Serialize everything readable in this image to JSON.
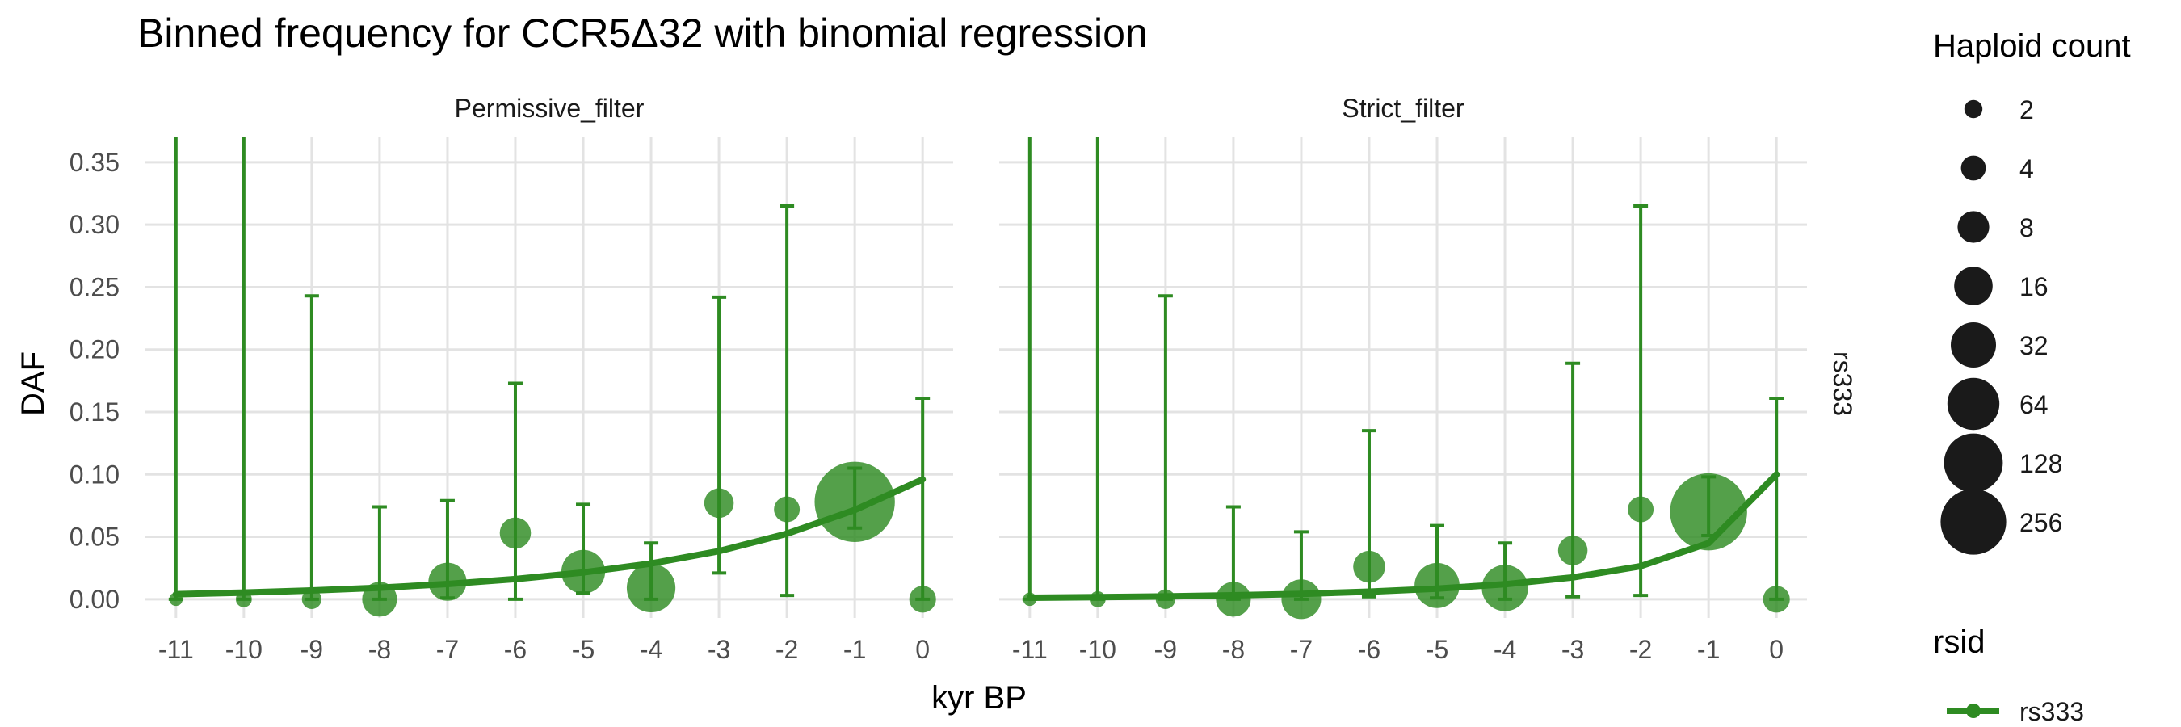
{
  "chart_data": {
    "type": "scatter",
    "title": "Binned frequency for CCR5Δ32 with binomial regression",
    "xlabel": "kyr BP",
    "ylabel": "DAF",
    "facet_row_label": "rs333",
    "x_ticks": [
      "-11",
      "-10",
      "-9",
      "-8",
      "-7",
      "-6",
      "-5",
      "-4",
      "-3",
      "-2",
      "-1",
      "0"
    ],
    "y_ticks": [
      "0.00",
      "0.05",
      "0.10",
      "0.15",
      "0.20",
      "0.25",
      "0.30",
      "0.35"
    ],
    "xlim": [
      -11.45,
      0.45
    ],
    "ylim": [
      -0.015,
      0.37
    ],
    "grid": true,
    "color": "#2e8b22",
    "legend": {
      "size_title": "Haploid count",
      "size_values": [
        "2",
        "4",
        "8",
        "16",
        "32",
        "64",
        "128",
        "256"
      ],
      "color_title": "rsid",
      "color_entries": [
        "rs333"
      ]
    },
    "panels": [
      {
        "name": "Permissive_filter",
        "points": [
          {
            "x": -11,
            "y": 0.0,
            "lo": 0.0,
            "hi": 0.37,
            "count": 2
          },
          {
            "x": -10,
            "y": 0.0,
            "lo": 0.0,
            "hi": 0.37,
            "count": 4
          },
          {
            "x": -9,
            "y": 0.0,
            "lo": 0.0,
            "hi": 0.243,
            "count": 8
          },
          {
            "x": -8,
            "y": 0.0,
            "lo": 0.0,
            "hi": 0.074,
            "count": 40
          },
          {
            "x": -7,
            "y": 0.014,
            "lo": 0.001,
            "hi": 0.079,
            "count": 50
          },
          {
            "x": -6,
            "y": 0.053,
            "lo": 0.0,
            "hi": 0.173,
            "count": 30
          },
          {
            "x": -5,
            "y": 0.022,
            "lo": 0.005,
            "hi": 0.076,
            "count": 70
          },
          {
            "x": -4,
            "y": 0.009,
            "lo": 0.0,
            "hi": 0.045,
            "count": 90
          },
          {
            "x": -3,
            "y": 0.077,
            "lo": 0.021,
            "hi": 0.242,
            "count": 26
          },
          {
            "x": -2,
            "y": 0.072,
            "lo": 0.003,
            "hi": 0.315,
            "count": 18
          },
          {
            "x": -1,
            "y": 0.078,
            "lo": 0.057,
            "hi": 0.105,
            "count": 280
          },
          {
            "x": 0,
            "y": 0.0,
            "lo": 0.0,
            "hi": 0.161,
            "count": 20
          }
        ],
        "fit": {
          "x": [
            -11,
            -10,
            -9,
            -8,
            -7,
            -6,
            -5,
            -4,
            -3,
            -2,
            -1,
            0
          ],
          "y": [
            0.004,
            0.0053,
            0.007,
            0.0092,
            0.0122,
            0.0161,
            0.0214,
            0.0286,
            0.0385,
            0.0525,
            0.0715,
            0.096
          ]
        }
      },
      {
        "name": "Strict_filter",
        "points": [
          {
            "x": -11,
            "y": 0.0,
            "lo": 0.0,
            "hi": 0.37,
            "count": 2
          },
          {
            "x": -10,
            "y": 0.0,
            "lo": 0.0,
            "hi": 0.37,
            "count": 4
          },
          {
            "x": -9,
            "y": 0.0,
            "lo": 0.0,
            "hi": 0.243,
            "count": 8
          },
          {
            "x": -8,
            "y": 0.0,
            "lo": 0.0,
            "hi": 0.074,
            "count": 40
          },
          {
            "x": -7,
            "y": 0.0,
            "lo": 0.0,
            "hi": 0.054,
            "count": 55
          },
          {
            "x": -6,
            "y": 0.026,
            "lo": 0.002,
            "hi": 0.135,
            "count": 32
          },
          {
            "x": -5,
            "y": 0.011,
            "lo": 0.001,
            "hi": 0.059,
            "count": 75
          },
          {
            "x": -4,
            "y": 0.009,
            "lo": 0.0,
            "hi": 0.045,
            "count": 80
          },
          {
            "x": -3,
            "y": 0.039,
            "lo": 0.002,
            "hi": 0.189,
            "count": 26
          },
          {
            "x": -2,
            "y": 0.072,
            "lo": 0.003,
            "hi": 0.315,
            "count": 18
          },
          {
            "x": -1,
            "y": 0.07,
            "lo": 0.051,
            "hi": 0.098,
            "count": 256
          },
          {
            "x": 0,
            "y": 0.0,
            "lo": 0.0,
            "hi": 0.161,
            "count": 20
          }
        ],
        "fit": {
          "x": [
            -11,
            -10,
            -9,
            -8,
            -7,
            -6,
            -5,
            -4,
            -3,
            -2,
            -1,
            0
          ],
          "y": [
            0.0012,
            0.0016,
            0.0022,
            0.0031,
            0.0043,
            0.006,
            0.0085,
            0.012,
            0.0175,
            0.0265,
            0.045,
            0.1
          ]
        }
      }
    ]
  }
}
